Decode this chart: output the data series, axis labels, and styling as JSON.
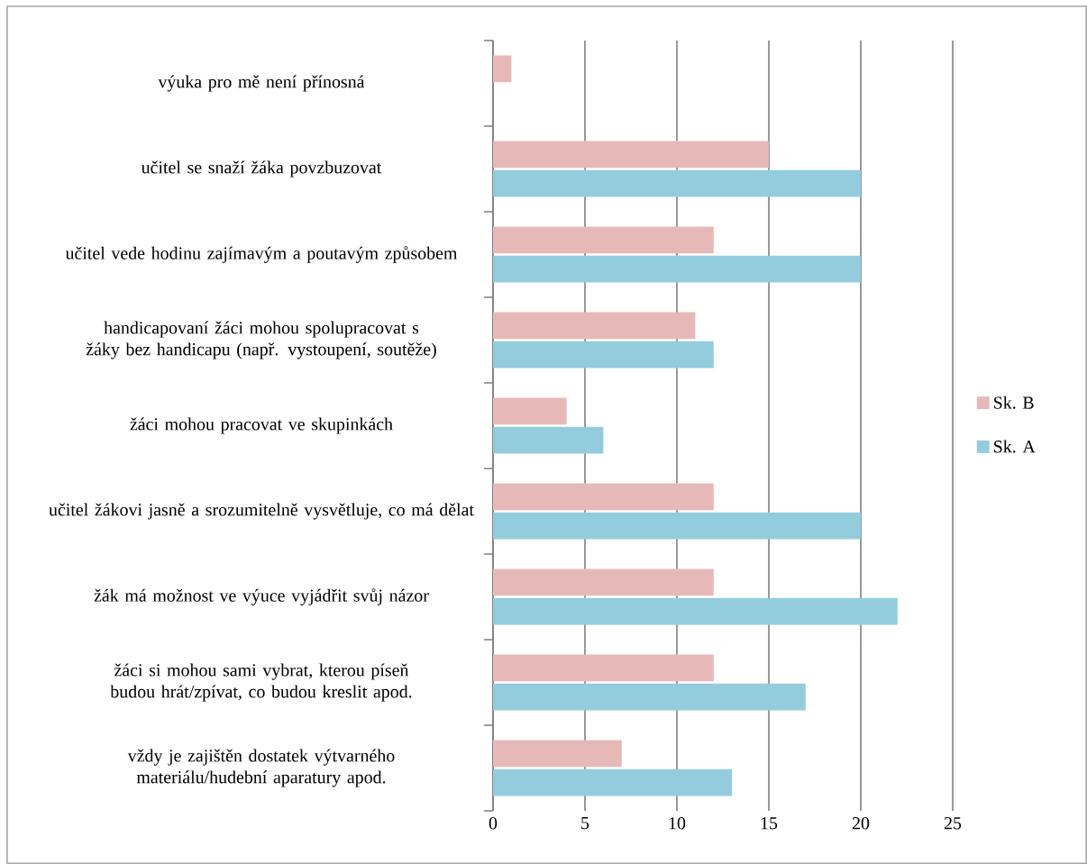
{
  "chart_data": {
    "type": "bar",
    "orientation": "horizontal",
    "categories": [
      "výuka pro mě není přínosná",
      "učitel se snaží žáka povzbuzovat",
      "učitel vede hodinu zajímavým a poutavým způsobem",
      "handicapovaní žáci mohou spolupracovat s žáky bez handicapu (např. vystoupení, soutěže)",
      "žáci mohou pracovat ve skupinkách",
      "učitel žákovi jasně a srozumitelně vysvětluje, co má dělat",
      "žák má možnost ve výuce vyjádřit svůj názor",
      "žáci si mohou sami vybrat, kterou píseň budou hrát/zpívat, co budou kreslit apod.",
      "vždy je zajištěn dostatek výtvarného materiálu/hudební aparatury apod."
    ],
    "series": [
      {
        "name": "Sk. B",
        "color": "#e6b9b8",
        "values": [
          1,
          15,
          12,
          11,
          4,
          12,
          12,
          12,
          7
        ]
      },
      {
        "name": "Sk. A",
        "color": "#93cddd",
        "values": [
          null,
          20,
          20,
          12,
          6,
          20,
          22,
          17,
          13
        ]
      }
    ],
    "xlim": [
      0,
      25
    ],
    "xticks": [
      0,
      5,
      10,
      15,
      20,
      25
    ],
    "grid": "x",
    "legend": "right"
  }
}
